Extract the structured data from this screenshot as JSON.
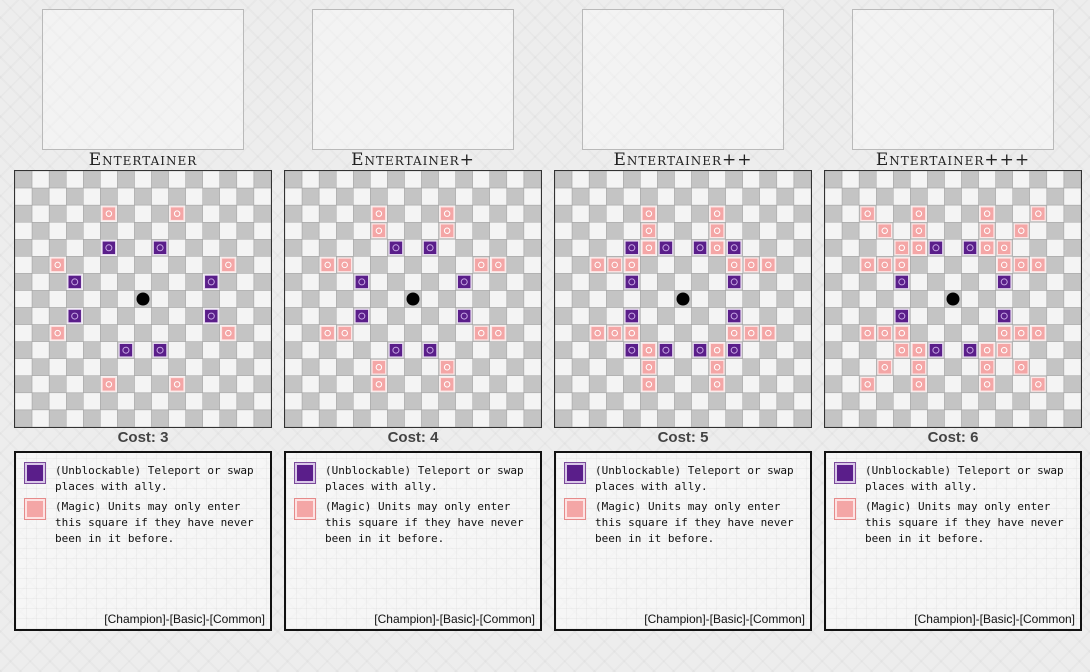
{
  "board_size": 15,
  "legend": [
    {
      "icon": "teleport-icon",
      "text": "(Unblockable) Teleport or swap places with ally."
    },
    {
      "icon": "magic-icon",
      "text": "(Magic) Units may only enter this square if they have never been in it before."
    }
  ],
  "colors": {
    "dark_square": "#c4c4c4",
    "light_square": "#f4f4f4",
    "teleport": "#5a1e8a",
    "magic": "#f4a6a6",
    "piece": "#000000"
  },
  "cards": [
    {
      "title": "Entertainer",
      "cost": "Cost: 3",
      "footer": "[Champion]-[Basic]-[Common]",
      "teleport": [
        [
          -2,
          -3
        ],
        [
          -4,
          -1
        ],
        [
          4,
          -1
        ],
        [
          -4,
          1
        ],
        [
          4,
          1
        ],
        [
          -1,
          3
        ],
        [
          1,
          3
        ],
        [
          1,
          -3
        ]
      ],
      "magic": [
        [
          -2,
          -5
        ],
        [
          2,
          -5
        ],
        [
          -5,
          -2
        ],
        [
          5,
          -2
        ],
        [
          -5,
          2
        ],
        [
          5,
          2
        ],
        [
          -2,
          5
        ],
        [
          2,
          5
        ]
      ]
    },
    {
      "title": "Entertainer+",
      "cost": "Cost: 4",
      "footer": "[Champion]-[Basic]-[Common]",
      "teleport": [
        [
          -1,
          -3
        ],
        [
          1,
          -3
        ],
        [
          -3,
          -1
        ],
        [
          3,
          -1
        ],
        [
          -3,
          1
        ],
        [
          3,
          1
        ],
        [
          -1,
          3
        ],
        [
          1,
          3
        ]
      ],
      "magic": [
        [
          -2,
          -5
        ],
        [
          2,
          -5
        ],
        [
          -2,
          -4
        ],
        [
          2,
          -4
        ],
        [
          -5,
          -2
        ],
        [
          -4,
          -2
        ],
        [
          4,
          -2
        ],
        [
          5,
          -2
        ],
        [
          -5,
          2
        ],
        [
          -4,
          2
        ],
        [
          4,
          2
        ],
        [
          5,
          2
        ],
        [
          -2,
          4
        ],
        [
          2,
          4
        ],
        [
          -2,
          5
        ],
        [
          2,
          5
        ]
      ]
    },
    {
      "title": "Entertainer++",
      "cost": "Cost: 5",
      "footer": "[Champion]-[Basic]-[Common]",
      "teleport": [
        [
          -3,
          -3
        ],
        [
          -1,
          -3
        ],
        [
          1,
          -3
        ],
        [
          3,
          -3
        ],
        [
          -3,
          -1
        ],
        [
          3,
          -1
        ],
        [
          -3,
          1
        ],
        [
          3,
          1
        ],
        [
          -3,
          3
        ],
        [
          -1,
          3
        ],
        [
          1,
          3
        ],
        [
          3,
          3
        ]
      ],
      "magic": [
        [
          -2,
          -5
        ],
        [
          2,
          -5
        ],
        [
          -2,
          -4
        ],
        [
          2,
          -4
        ],
        [
          -3,
          -3
        ],
        [
          -2,
          -3
        ],
        [
          2,
          -3
        ],
        [
          3,
          -3
        ],
        [
          -5,
          -2
        ],
        [
          -4,
          -2
        ],
        [
          -3,
          -2
        ],
        [
          3,
          -2
        ],
        [
          4,
          -2
        ],
        [
          5,
          -2
        ],
        [
          -5,
          2
        ],
        [
          -4,
          2
        ],
        [
          -3,
          2
        ],
        [
          3,
          2
        ],
        [
          4,
          2
        ],
        [
          5,
          2
        ],
        [
          -3,
          3
        ],
        [
          -2,
          3
        ],
        [
          2,
          3
        ],
        [
          3,
          3
        ],
        [
          -2,
          4
        ],
        [
          2,
          4
        ],
        [
          -2,
          5
        ],
        [
          2,
          5
        ]
      ]
    },
    {
      "title": "Entertainer+++",
      "cost": "Cost: 6",
      "footer": "[Champion]-[Basic]-[Common]",
      "teleport": [
        [
          -1,
          -3
        ],
        [
          1,
          -3
        ],
        [
          -3,
          -1
        ],
        [
          3,
          -1
        ],
        [
          -3,
          1
        ],
        [
          3,
          1
        ],
        [
          -1,
          3
        ],
        [
          1,
          3
        ]
      ],
      "magic": [
        [
          -5,
          -5
        ],
        [
          -2,
          -5
        ],
        [
          2,
          -5
        ],
        [
          5,
          -5
        ],
        [
          -4,
          -4
        ],
        [
          -2,
          -4
        ],
        [
          2,
          -4
        ],
        [
          4,
          -4
        ],
        [
          -3,
          -3
        ],
        [
          -2,
          -3
        ],
        [
          2,
          -3
        ],
        [
          3,
          -3
        ],
        [
          -5,
          -2
        ],
        [
          -4,
          -2
        ],
        [
          -3,
          -2
        ],
        [
          3,
          -2
        ],
        [
          4,
          -2
        ],
        [
          5,
          -2
        ],
        [
          -5,
          2
        ],
        [
          -4,
          2
        ],
        [
          -3,
          2
        ],
        [
          3,
          2
        ],
        [
          4,
          2
        ],
        [
          5,
          2
        ],
        [
          -3,
          3
        ],
        [
          -2,
          3
        ],
        [
          2,
          3
        ],
        [
          3,
          3
        ],
        [
          -4,
          4
        ],
        [
          -2,
          4
        ],
        [
          2,
          4
        ],
        [
          4,
          4
        ],
        [
          -5,
          5
        ],
        [
          -2,
          5
        ],
        [
          2,
          5
        ],
        [
          5,
          5
        ]
      ]
    }
  ]
}
